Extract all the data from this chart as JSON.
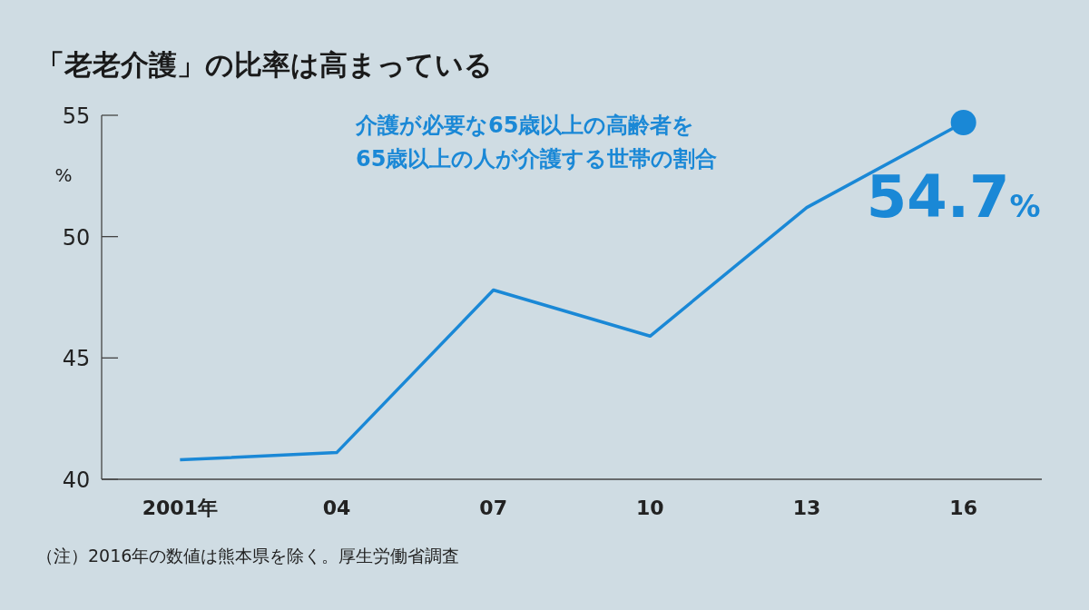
{
  "chart_data": {
    "type": "line",
    "title": "「老老介護」の比率は高まっている",
    "ylabel": "%",
    "categories": [
      "2001年",
      "04",
      "07",
      "10",
      "13",
      "16"
    ],
    "ylim": [
      40,
      55
    ],
    "yticks": [
      40,
      45,
      50,
      55
    ],
    "grid": false,
    "legend": false,
    "series": [
      {
        "name": "介護が必要な65歳以上の高齢者を\n65歳以上の人が介護する世帯の割合",
        "color": "#1a88d6",
        "values": [
          40.8,
          41.1,
          47.8,
          45.9,
          51.2,
          54.7
        ]
      },
      {
        "type": "scatter",
        "marker": "circle",
        "color": "#1a88d6",
        "x": [
          "16"
        ],
        "values": [
          54.7
        ]
      }
    ],
    "annotations": [
      {
        "text": "54.7%",
        "x": "16",
        "y": 54.7
      },
      "（注）2016年の数値は熊本県を除く。厚生労働省調査"
    ]
  }
}
